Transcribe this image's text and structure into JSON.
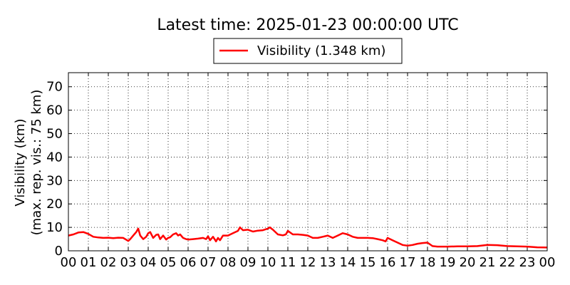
{
  "chart_data": {
    "type": "line",
    "title": "Latest time: 2025-01-23 00:00:00 UTC",
    "ylabel_line1": "Visibility (km)",
    "ylabel_line2": "(max. rep. vis.: 75 km)",
    "xlabel": "",
    "ylim": [
      0,
      76
    ],
    "xlim": [
      0,
      24
    ],
    "grid": true,
    "legend_position": "top-center",
    "xticks": [
      "00",
      "01",
      "02",
      "03",
      "04",
      "05",
      "06",
      "07",
      "08",
      "09",
      "10",
      "11",
      "12",
      "13",
      "14",
      "15",
      "16",
      "17",
      "18",
      "19",
      "20",
      "21",
      "22",
      "23",
      "00"
    ],
    "yticks": [
      0,
      10,
      20,
      30,
      40,
      50,
      60,
      70
    ],
    "series": [
      {
        "name": "Visibility (1.348 km)",
        "color": "#ff0000",
        "x": [
          0.0,
          0.25,
          0.5,
          0.75,
          1.0,
          1.25,
          1.5,
          1.75,
          2.0,
          2.25,
          2.5,
          2.75,
          3.0,
          3.1,
          3.25,
          3.4,
          3.5,
          3.6,
          3.75,
          3.9,
          4.0,
          4.1,
          4.25,
          4.4,
          4.5,
          4.6,
          4.75,
          4.9,
          5.0,
          5.1,
          5.25,
          5.4,
          5.5,
          5.6,
          5.75,
          5.9,
          6.0,
          6.25,
          6.5,
          6.75,
          6.9,
          7.0,
          7.1,
          7.25,
          7.4,
          7.5,
          7.6,
          7.75,
          8.0,
          8.25,
          8.5,
          8.6,
          8.75,
          9.0,
          9.25,
          9.5,
          9.75,
          10.0,
          10.1,
          10.25,
          10.5,
          10.75,
          10.9,
          11.0,
          11.25,
          11.5,
          11.75,
          12.0,
          12.25,
          12.5,
          12.75,
          13.0,
          13.25,
          13.5,
          13.75,
          14.0,
          14.25,
          14.5,
          14.75,
          15.0,
          15.25,
          15.5,
          15.75,
          15.9,
          16.0,
          16.25,
          16.5,
          16.75,
          17.0,
          17.25,
          17.5,
          17.75,
          18.0,
          18.25,
          18.5,
          18.75,
          19.0,
          19.5,
          20.0,
          20.5,
          21.0,
          21.5,
          22.0,
          22.5,
          23.0,
          23.5,
          24.0
        ],
        "y": [
          6.5,
          7.0,
          7.8,
          8.0,
          7.2,
          6.0,
          5.7,
          5.5,
          5.6,
          5.4,
          5.6,
          5.5,
          4.2,
          5.0,
          6.5,
          8.0,
          9.5,
          6.5,
          5.0,
          6.0,
          7.5,
          8.0,
          5.5,
          6.8,
          7.0,
          5.0,
          6.5,
          4.8,
          5.5,
          5.8,
          7.0,
          7.5,
          6.5,
          7.0,
          5.5,
          5.0,
          4.8,
          5.0,
          5.2,
          5.5,
          5.0,
          6.2,
          4.5,
          6.0,
          4.0,
          5.5,
          4.5,
          6.5,
          6.5,
          7.5,
          8.5,
          10.0,
          8.8,
          9.0,
          8.2,
          8.6,
          8.8,
          9.5,
          10.0,
          9.0,
          7.0,
          6.6,
          7.0,
          8.5,
          7.0,
          7.0,
          6.8,
          6.5,
          5.5,
          5.5,
          6.0,
          6.5,
          5.5,
          6.5,
          7.5,
          7.0,
          6.0,
          5.5,
          5.5,
          5.5,
          5.4,
          5.0,
          4.5,
          4.0,
          5.5,
          4.5,
          3.5,
          2.5,
          2.2,
          2.5,
          3.0,
          3.3,
          3.5,
          2.0,
          1.8,
          1.8,
          1.8,
          1.9,
          1.9,
          2.0,
          2.5,
          2.4,
          2.0,
          1.9,
          1.8,
          1.5,
          1.4
        ]
      }
    ]
  }
}
